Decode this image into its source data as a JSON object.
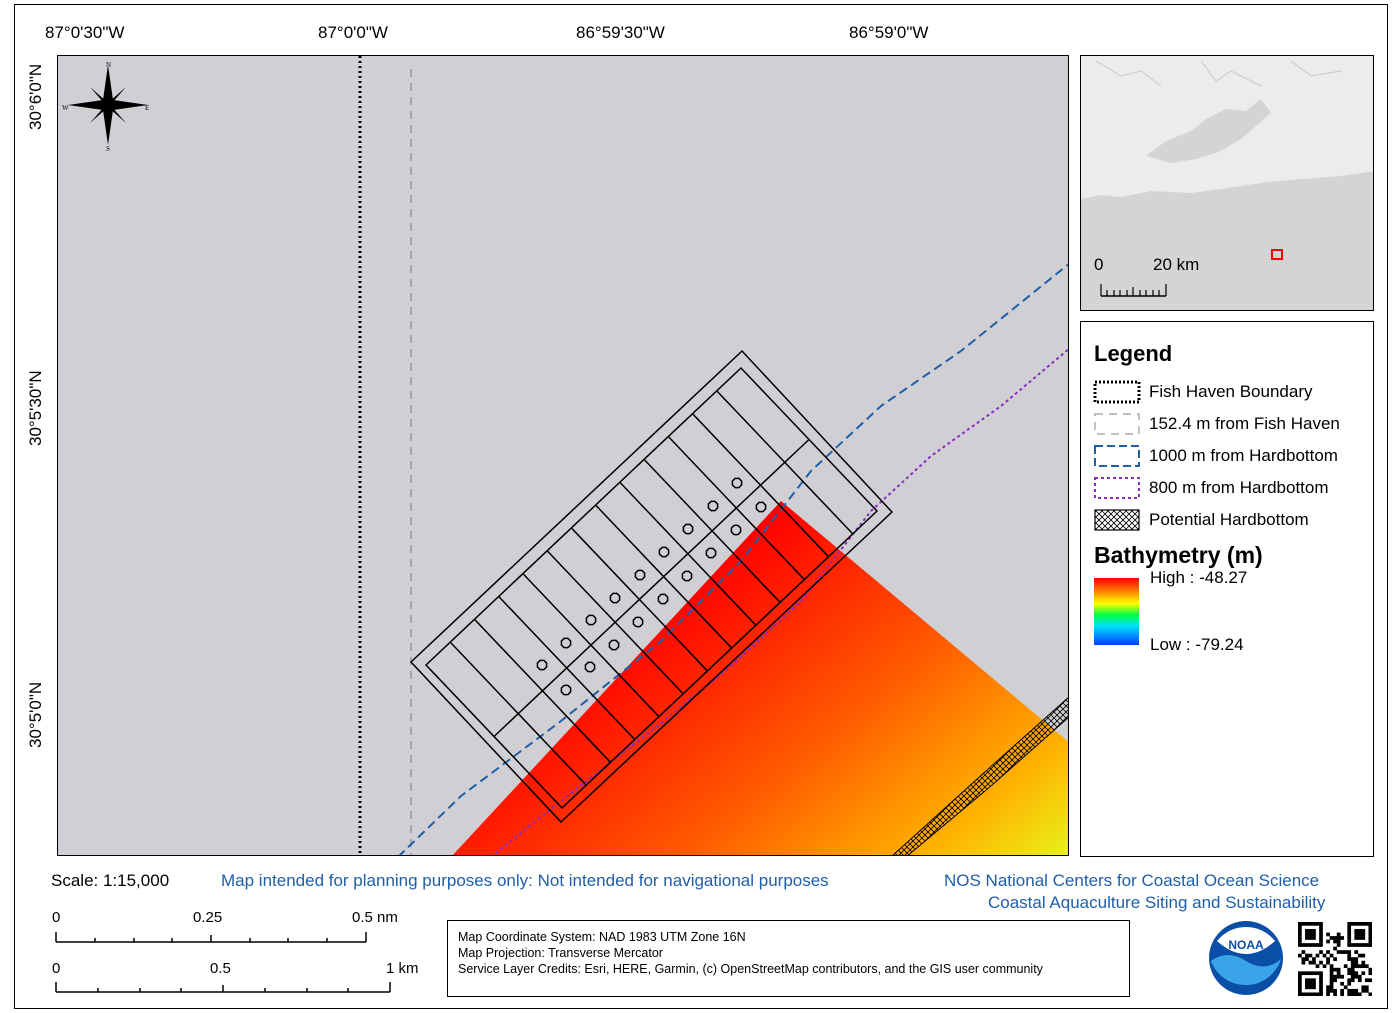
{
  "top_coords": [
    "87°0'30\"W",
    "87°0'0\"W",
    "86°59'30\"W",
    "86°59'0\"W"
  ],
  "side_coords": [
    "30°6'0\"N",
    "30°5'30\"N",
    "30°5'0\"N"
  ],
  "compass": {
    "n": "N",
    "s": "S",
    "e": "E",
    "w": "W"
  },
  "inset": {
    "scale_zero": "0",
    "scale_label": "20 km"
  },
  "legend": {
    "title": "Legend",
    "items": [
      {
        "label": "Fish Haven Boundary",
        "style": "black-dotted"
      },
      {
        "label": "152.4 m from Fish Haven",
        "style": "gray-dashed"
      },
      {
        "label": "1000 m from Hardbottom",
        "style": "blue-dashed"
      },
      {
        "label": "800 m from Hardbottom",
        "style": "purple-dotted"
      },
      {
        "label": "Potential Hardbottom",
        "style": "crosshatch"
      }
    ],
    "bathy_title": "Bathymetry (m)",
    "bathy_high": "High : -48.27",
    "bathy_low": "Low : -79.24"
  },
  "scale_text": "Scale: 1:15,000",
  "disclaimer": "Map intended for planning purposes only: Not intended for navigational purposes",
  "org_line1": "NOS National Centers for Coastal Ocean Science",
  "org_line2": "Coastal Aquaculture Siting and Sustainability",
  "scalebar_nm": {
    "zero": "0",
    "mid": "0.25",
    "end": "0.5 nm"
  },
  "scalebar_km": {
    "zero": "0",
    "mid": "0.5",
    "end": "1 km"
  },
  "credits": [
    "Map Coordinate System: NAD 1983 UTM Zone 16N",
    "Map Projection: Transverse Mercator",
    "Service Layer Credits: Esri, HERE, Garmin, (c) OpenStreetMap contributors, and the GIS user community"
  ],
  "logo_text": "NOAA",
  "colors": {
    "map_bg": "#d0d0d4",
    "blue_line": "#1f5fa8",
    "purple_line": "#8a2bbf",
    "bathy_high": "#ff0000",
    "bathy_low": "#0044ff"
  }
}
